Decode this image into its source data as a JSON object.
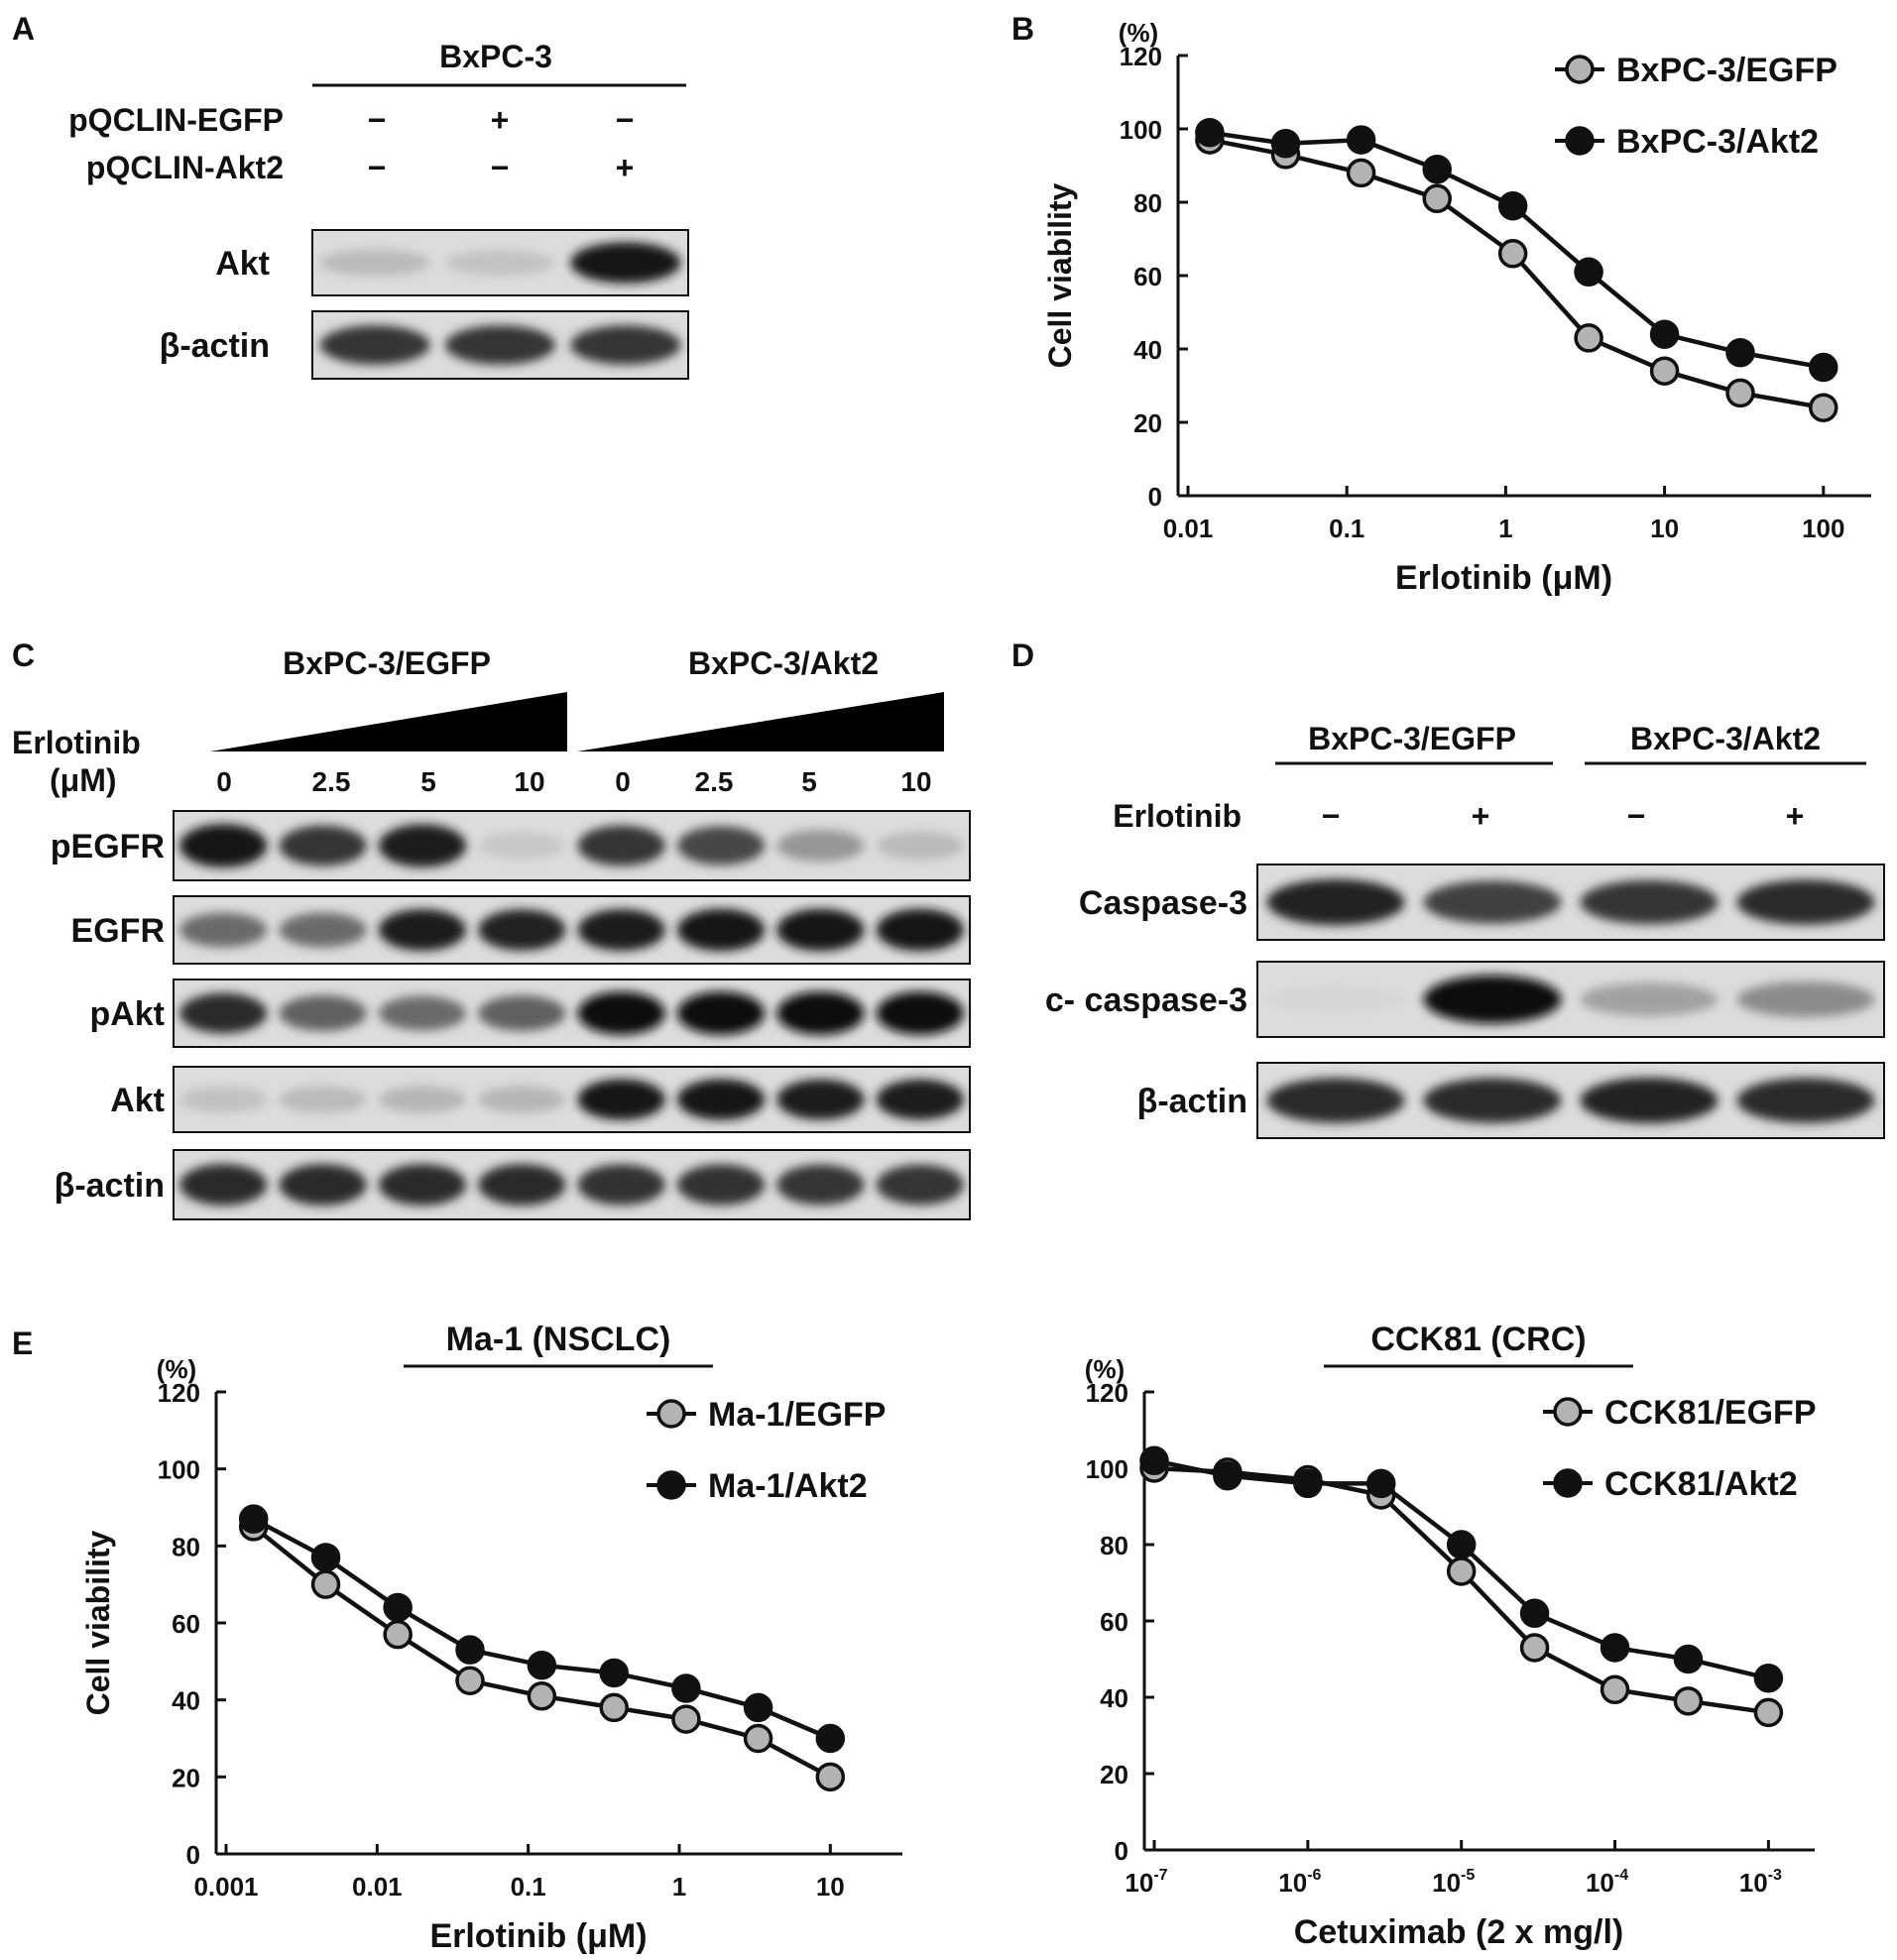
{
  "panels": {
    "A": {
      "letter": "A",
      "cell_line": "BxPC-3",
      "row_labels": [
        "pQCLIN-EGFP",
        "pQCLIN-Akt2"
      ],
      "conditions": [
        [
          "−",
          "+",
          "−"
        ],
        [
          "−",
          "−",
          "+"
        ]
      ],
      "blots": [
        {
          "label": "Akt",
          "bands": [
            0.18,
            0.14,
            0.95
          ]
        },
        {
          "label": "β-actin",
          "bands": [
            0.8,
            0.8,
            0.8
          ]
        }
      ]
    },
    "B": {
      "letter": "B"
    },
    "C": {
      "letter": "C",
      "groups": [
        "BxPC-3/EGFP",
        "BxPC-3/Akt2"
      ],
      "treatment_label": [
        "Erlotinib",
        "(μM)"
      ],
      "doses": [
        "0",
        "2.5",
        "5",
        "10",
        "0",
        "2.5",
        "5",
        "10"
      ],
      "blots": [
        {
          "label": "pEGFR",
          "bands": [
            0.95,
            0.8,
            0.92,
            0.12,
            0.8,
            0.72,
            0.35,
            0.18
          ]
        },
        {
          "label": "EGFR",
          "bands": [
            0.55,
            0.55,
            0.92,
            0.9,
            0.92,
            0.95,
            0.95,
            0.95
          ]
        },
        {
          "label": "pAkt",
          "bands": [
            0.85,
            0.6,
            0.55,
            0.6,
            1.0,
            1.0,
            1.0,
            1.0
          ]
        },
        {
          "label": "Akt",
          "bands": [
            0.15,
            0.18,
            0.2,
            0.2,
            0.95,
            0.95,
            0.92,
            0.92
          ]
        },
        {
          "label": "β-actin",
          "bands": [
            0.85,
            0.85,
            0.85,
            0.85,
            0.82,
            0.82,
            0.8,
            0.8
          ]
        }
      ]
    },
    "D": {
      "letter": "D",
      "groups": [
        "BxPC-3/EGFP",
        "BxPC-3/Akt2"
      ],
      "treatment_label": "Erlotinib",
      "conditions": [
        "−",
        "+",
        "−",
        "+"
      ],
      "blots": [
        {
          "label": "Caspase-3",
          "bands": [
            0.9,
            0.75,
            0.8,
            0.85
          ]
        },
        {
          "label": "c- caspase-3",
          "bands": [
            0.05,
            1.0,
            0.3,
            0.4
          ]
        },
        {
          "label": "β-actin",
          "bands": [
            0.85,
            0.85,
            0.88,
            0.85
          ]
        }
      ]
    },
    "E": {
      "letter": "E"
    }
  },
  "chart_data": [
    {
      "id": "B",
      "type": "line",
      "title": "",
      "xlabel": "Erlotinib (μM)",
      "ylabel": "Cell viability",
      "yunit": "(%)",
      "xscale": "log",
      "xlim": [
        0.01,
        200
      ],
      "ylim": [
        0,
        120
      ],
      "xticks": [
        0.01,
        0.1,
        1,
        10,
        100
      ],
      "xtick_labels": [
        "0.01",
        "0.1",
        "1",
        "10",
        "100"
      ],
      "yticks": [
        0,
        20,
        40,
        60,
        80,
        100,
        120
      ],
      "ytick_labels": [
        "0",
        "20",
        "40",
        "60",
        "80",
        "100",
        "120"
      ],
      "legend": "top-right",
      "x": [
        0.0137,
        0.0412,
        0.123,
        0.37,
        1.11,
        3.33,
        10,
        30,
        100
      ],
      "series": [
        {
          "name": "BxPC-3/EGFP",
          "marker": "#b3b3b3",
          "values": [
            97,
            93,
            88,
            81,
            66,
            43,
            34,
            28,
            24
          ]
        },
        {
          "name": "BxPC-3/Akt2",
          "marker": "#111111",
          "values": [
            99,
            96,
            97,
            89,
            79,
            61,
            44,
            39,
            35
          ]
        }
      ]
    },
    {
      "id": "E-left",
      "type": "line",
      "title": "Ma-1 (NSCLC)",
      "xlabel": "Erlotinib (μM)",
      "ylabel": "Cell viability",
      "yunit": "(%)",
      "xscale": "log",
      "xlim": [
        0.001,
        30
      ],
      "ylim": [
        0,
        120
      ],
      "xticks": [
        0.001,
        0.01,
        0.1,
        1,
        10
      ],
      "xtick_labels": [
        "0.001",
        "0.01",
        "0.1",
        "1",
        "10"
      ],
      "yticks": [
        0,
        20,
        40,
        60,
        80,
        100,
        120
      ],
      "ytick_labels": [
        "0",
        "20",
        "40",
        "60",
        "80",
        "100",
        "120"
      ],
      "legend": "top-right",
      "x": [
        0.00152,
        0.00457,
        0.0137,
        0.0412,
        0.123,
        0.37,
        1.11,
        3.33,
        10
      ],
      "series": [
        {
          "name": "Ma-1/EGFP",
          "marker": "#b3b3b3",
          "values": [
            85,
            70,
            57,
            45,
            41,
            38,
            35,
            30,
            20
          ]
        },
        {
          "name": "Ma-1/Akt2",
          "marker": "#111111",
          "values": [
            87,
            77,
            64,
            53,
            49,
            47,
            43,
            38,
            30
          ]
        }
      ]
    },
    {
      "id": "E-right",
      "type": "line",
      "title": "CCK81 (CRC)",
      "xlabel": "Cetuximab (2 x mg/l)",
      "ylabel": "",
      "yunit": "(%)",
      "xscale": "log",
      "xlim": [
        1e-07,
        0.002
      ],
      "ylim": [
        0,
        120
      ],
      "xticks": [
        1e-07,
        1e-06,
        1e-05,
        0.0001,
        0.001
      ],
      "xtick_labels": [
        [
          "10",
          "-7"
        ],
        [
          "10",
          "-6"
        ],
        [
          "10",
          "-5"
        ],
        [
          "10",
          "-4"
        ],
        [
          "10",
          "-3"
        ]
      ],
      "yticks": [
        0,
        20,
        40,
        60,
        80,
        100,
        120
      ],
      "ytick_labels": [
        "0",
        "20",
        "40",
        "60",
        "80",
        "100",
        "120"
      ],
      "legend": "top-right",
      "x": [
        1e-07,
        3e-07,
        1e-06,
        3e-06,
        1e-05,
        3e-05,
        0.0001,
        0.0003,
        0.001
      ],
      "series": [
        {
          "name": "CCK81/EGFP",
          "marker": "#b3b3b3",
          "values": [
            100,
            99,
            97,
            93,
            73,
            53,
            42,
            39,
            36
          ]
        },
        {
          "name": "CCK81/Akt2",
          "marker": "#111111",
          "values": [
            102,
            98,
            96,
            96,
            80,
            62,
            53,
            50,
            45
          ]
        }
      ]
    }
  ]
}
